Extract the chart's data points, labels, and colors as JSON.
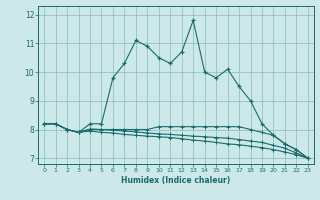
{
  "title": "",
  "xlabel": "Humidex (Indice chaleur)",
  "xlim": [
    -0.5,
    23.5
  ],
  "ylim": [
    6.8,
    12.3
  ],
  "xticks": [
    0,
    1,
    2,
    3,
    4,
    5,
    6,
    7,
    8,
    9,
    10,
    11,
    12,
    13,
    14,
    15,
    16,
    17,
    18,
    19,
    20,
    21,
    22,
    23
  ],
  "yticks": [
    7,
    8,
    9,
    10,
    11,
    12
  ],
  "bg_color": "#cce8e8",
  "grid_color": "#88bbbb",
  "line_color": "#1a6b6b",
  "line1_y": [
    8.2,
    8.2,
    8.0,
    7.9,
    8.2,
    8.2,
    9.8,
    10.3,
    11.1,
    10.9,
    10.5,
    10.3,
    10.7,
    11.8,
    10.0,
    9.8,
    10.1,
    9.5,
    9.0,
    8.2,
    7.8,
    7.5,
    7.3,
    7.0
  ],
  "line2_y": [
    8.2,
    8.2,
    8.0,
    7.9,
    8.0,
    8.0,
    8.0,
    8.0,
    8.0,
    8.0,
    8.1,
    8.1,
    8.1,
    8.1,
    8.1,
    8.1,
    8.1,
    8.1,
    8.0,
    7.9,
    7.8,
    7.5,
    7.3,
    7.0
  ],
  "line3_y": [
    8.2,
    8.2,
    8.0,
    7.9,
    7.95,
    7.9,
    7.88,
    7.83,
    7.8,
    7.77,
    7.75,
    7.72,
    7.68,
    7.63,
    7.6,
    7.55,
    7.5,
    7.47,
    7.42,
    7.37,
    7.3,
    7.22,
    7.12,
    7.0
  ],
  "line4_y": [
    8.2,
    8.2,
    8.0,
    7.9,
    8.02,
    8.0,
    7.98,
    7.95,
    7.92,
    7.88,
    7.85,
    7.83,
    7.8,
    7.77,
    7.75,
    7.72,
    7.7,
    7.65,
    7.6,
    7.55,
    7.45,
    7.35,
    7.18,
    7.0
  ]
}
